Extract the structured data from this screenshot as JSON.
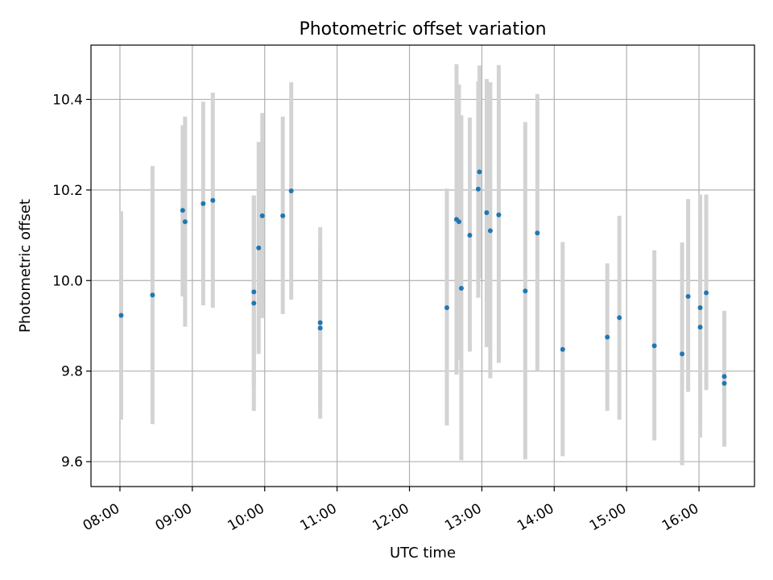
{
  "chart_data": {
    "type": "scatter",
    "title": "Photometric offset variation",
    "xlabel": "UTC time",
    "ylabel": "Photometric offset",
    "grid": true,
    "xlim": [
      "07:36",
      "16:46"
    ],
    "ylim": [
      9.545,
      10.52
    ],
    "x_ticks": [
      "08:00",
      "09:00",
      "10:00",
      "11:00",
      "12:00",
      "13:00",
      "14:00",
      "15:00",
      "16:00"
    ],
    "y_ticks": [
      "9.6",
      "9.8",
      "10.0",
      "10.2",
      "10.4"
    ],
    "series": [
      {
        "marker_color": "#1f77b4",
        "errorbar_color": "#d3d3d3",
        "points": [
          {
            "x": "08:01",
            "y": 9.923,
            "ylo": 9.693,
            "yhi": 10.153
          },
          {
            "x": "08:27",
            "y": 9.968,
            "ylo": 9.683,
            "yhi": 10.253
          },
          {
            "x": "08:52",
            "y": 10.155,
            "ylo": 9.965,
            "yhi": 10.343
          },
          {
            "x": "08:54",
            "y": 10.13,
            "ylo": 9.898,
            "yhi": 10.362
          },
          {
            "x": "09:09",
            "y": 10.17,
            "ylo": 9.945,
            "yhi": 10.395
          },
          {
            "x": "09:17",
            "y": 10.177,
            "ylo": 9.94,
            "yhi": 10.415
          },
          {
            "x": "09:51",
            "y": 9.975,
            "ylo": 9.765,
            "yhi": 10.187
          },
          {
            "x": "09:51",
            "y": 9.95,
            "ylo": 9.712,
            "yhi": 10.188
          },
          {
            "x": "09:55",
            "y": 10.072,
            "ylo": 9.838,
            "yhi": 10.306
          },
          {
            "x": "09:58",
            "y": 10.143,
            "ylo": 9.917,
            "yhi": 10.37
          },
          {
            "x": "10:15",
            "y": 10.143,
            "ylo": 9.926,
            "yhi": 10.362
          },
          {
            "x": "10:22",
            "y": 10.198,
            "ylo": 9.958,
            "yhi": 10.438
          },
          {
            "x": "10:46",
            "y": 9.907,
            "ylo": 9.695,
            "yhi": 10.118
          },
          {
            "x": "10:46",
            "y": 9.895,
            "ylo": 9.712,
            "yhi": 10.078
          },
          {
            "x": "12:31",
            "y": 9.94,
            "ylo": 9.68,
            "yhi": 10.203
          },
          {
            "x": "12:39",
            "y": 10.135,
            "ylo": 9.792,
            "yhi": 10.478
          },
          {
            "x": "12:41",
            "y": 10.13,
            "ylo": 9.825,
            "yhi": 10.433
          },
          {
            "x": "12:43",
            "y": 9.983,
            "ylo": 9.603,
            "yhi": 10.365
          },
          {
            "x": "12:50",
            "y": 10.1,
            "ylo": 9.843,
            "yhi": 10.36
          },
          {
            "x": "12:57",
            "y": 10.202,
            "ylo": 9.962,
            "yhi": 10.44
          },
          {
            "x": "12:58",
            "y": 10.24,
            "ylo": 10.005,
            "yhi": 10.475
          },
          {
            "x": "13:04",
            "y": 10.15,
            "ylo": 9.853,
            "yhi": 10.445
          },
          {
            "x": "13:07",
            "y": 10.11,
            "ylo": 9.784,
            "yhi": 10.438
          },
          {
            "x": "13:14",
            "y": 10.145,
            "ylo": 9.818,
            "yhi": 10.476
          },
          {
            "x": "13:36",
            "y": 9.977,
            "ylo": 9.605,
            "yhi": 10.35
          },
          {
            "x": "13:46",
            "y": 10.105,
            "ylo": 9.8,
            "yhi": 10.412
          },
          {
            "x": "14:07",
            "y": 9.848,
            "ylo": 9.612,
            "yhi": 10.085
          },
          {
            "x": "14:44",
            "y": 9.875,
            "ylo": 9.712,
            "yhi": 10.038
          },
          {
            "x": "14:54",
            "y": 9.918,
            "ylo": 9.693,
            "yhi": 10.143
          },
          {
            "x": "15:23",
            "y": 9.856,
            "ylo": 9.647,
            "yhi": 10.067
          },
          {
            "x": "15:46",
            "y": 9.838,
            "ylo": 9.592,
            "yhi": 10.084
          },
          {
            "x": "15:51",
            "y": 9.965,
            "ylo": 9.754,
            "yhi": 10.18
          },
          {
            "x": "16:01",
            "y": 9.94,
            "ylo": 9.69,
            "yhi": 10.19
          },
          {
            "x": "16:01",
            "y": 9.897,
            "ylo": 9.653,
            "yhi": 10.14
          },
          {
            "x": "16:06",
            "y": 9.973,
            "ylo": 9.758,
            "yhi": 10.19
          },
          {
            "x": "16:21",
            "y": 9.788,
            "ylo": 9.633,
            "yhi": 9.933
          },
          {
            "x": "16:21",
            "y": 9.773,
            "ylo": 9.633,
            "yhi": 9.915
          }
        ]
      }
    ]
  }
}
